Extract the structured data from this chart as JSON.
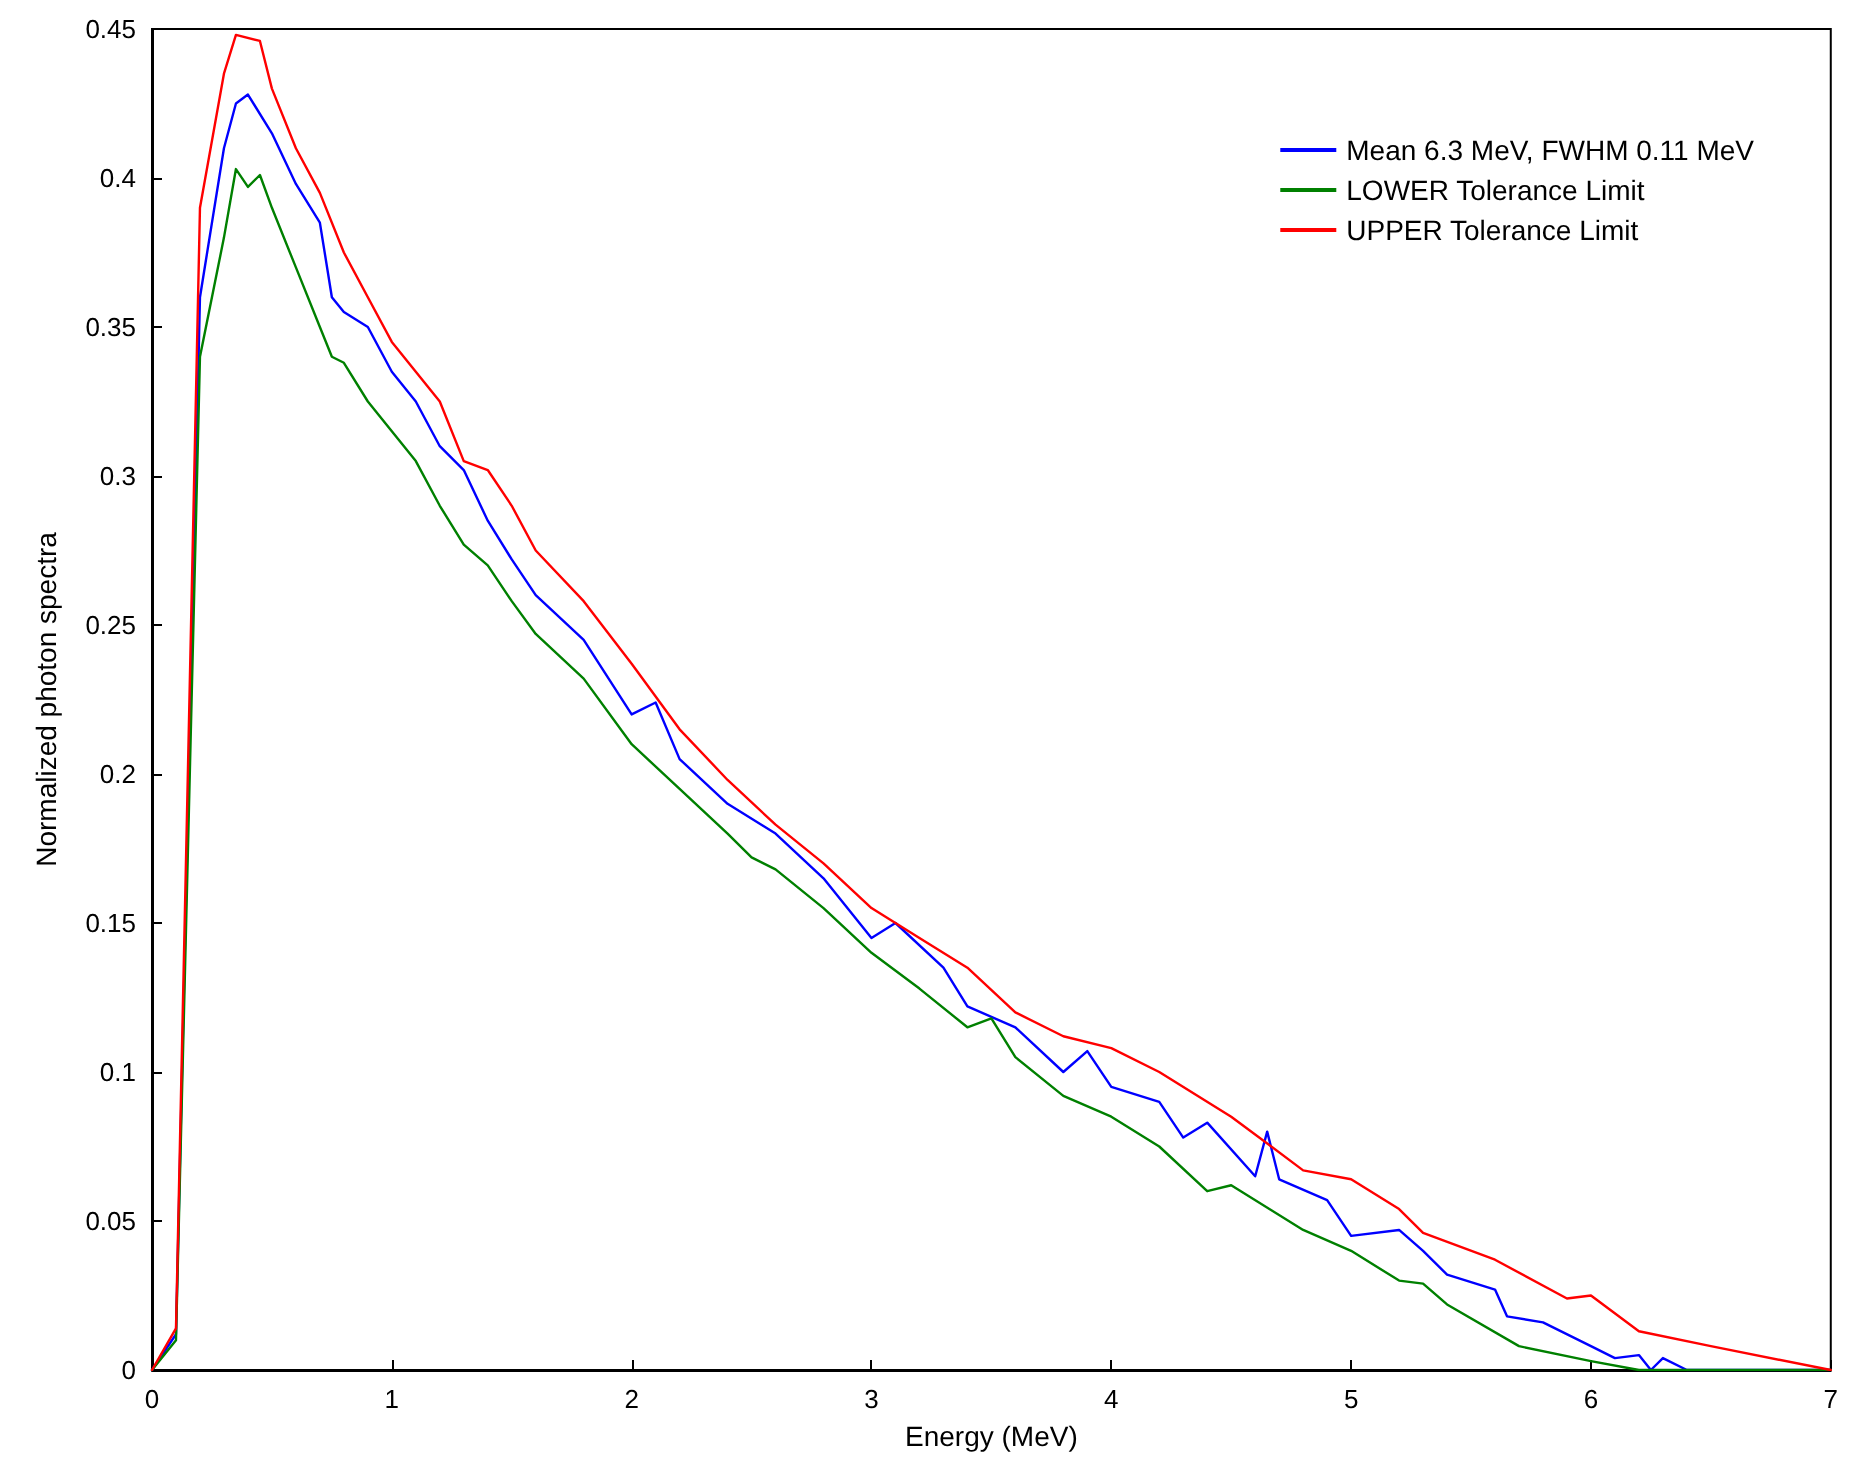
{
  "chart_data": {
    "type": "line",
    "xlabel": "Energy (MeV)",
    "ylabel": "Normalized photon spectra",
    "xlim": [
      0,
      7
    ],
    "ylim": [
      0,
      0.45
    ],
    "xticks": [
      0,
      1,
      2,
      3,
      4,
      5,
      6,
      7
    ],
    "yticks": [
      0,
      0.05,
      0.1,
      0.15,
      0.2,
      0.25,
      0.3,
      0.35,
      0.4,
      0.45
    ],
    "grid": false,
    "legend": "top right",
    "marker": "none",
    "line_style": "solid",
    "series": [
      {
        "name": "Mean 6.3 MeV, FWHM 0.11 MeV",
        "color": "#0000ff",
        "x": [
          0,
          0.1,
          0.2,
          0.3,
          0.35,
          0.4,
          0.5,
          0.6,
          0.7,
          0.75,
          0.8,
          0.9,
          1.0,
          1.1,
          1.2,
          1.3,
          1.4,
          1.5,
          1.6,
          1.8,
          2.0,
          2.1,
          2.2,
          2.4,
          2.6,
          2.8,
          3.0,
          3.1,
          3.3,
          3.4,
          3.6,
          3.8,
          3.9,
          4.0,
          4.2,
          4.3,
          4.4,
          4.6,
          4.65,
          4.7,
          4.9,
          5.0,
          5.2,
          5.3,
          5.4,
          5.6,
          5.65,
          5.8,
          6.0,
          6.1,
          6.2,
          6.25,
          6.3,
          6.4,
          7.0
        ],
        "values": [
          0,
          0.012,
          0.36,
          0.41,
          0.425,
          0.428,
          0.415,
          0.398,
          0.385,
          0.36,
          0.355,
          0.35,
          0.335,
          0.325,
          0.31,
          0.302,
          0.285,
          0.272,
          0.26,
          0.245,
          0.22,
          0.224,
          0.205,
          0.19,
          0.18,
          0.165,
          0.145,
          0.15,
          0.135,
          0.122,
          0.115,
          0.1,
          0.107,
          0.095,
          0.09,
          0.078,
          0.083,
          0.065,
          0.08,
          0.064,
          0.057,
          0.045,
          0.047,
          0.04,
          0.032,
          0.027,
          0.018,
          0.016,
          0.008,
          0.004,
          0.005,
          0,
          0.004,
          0,
          0
        ]
      },
      {
        "name": "LOWER Tolerance Limit",
        "color": "#008000",
        "x": [
          0,
          0.1,
          0.2,
          0.3,
          0.35,
          0.4,
          0.45,
          0.5,
          0.6,
          0.7,
          0.75,
          0.8,
          0.9,
          1.0,
          1.1,
          1.2,
          1.3,
          1.4,
          1.5,
          1.6,
          1.8,
          2.0,
          2.2,
          2.4,
          2.5,
          2.6,
          2.8,
          3.0,
          3.2,
          3.4,
          3.5,
          3.6,
          3.8,
          4.0,
          4.2,
          4.4,
          4.5,
          4.8,
          5.0,
          5.2,
          5.3,
          5.4,
          5.7,
          6.0,
          6.2,
          7.0
        ],
        "values": [
          0,
          0.01,
          0.34,
          0.38,
          0.403,
          0.397,
          0.401,
          0.39,
          0.37,
          0.35,
          0.34,
          0.338,
          0.325,
          0.315,
          0.305,
          0.29,
          0.277,
          0.27,
          0.258,
          0.247,
          0.232,
          0.21,
          0.195,
          0.18,
          0.172,
          0.168,
          0.155,
          0.14,
          0.128,
          0.115,
          0.118,
          0.105,
          0.092,
          0.085,
          0.075,
          0.06,
          0.062,
          0.047,
          0.04,
          0.03,
          0.029,
          0.022,
          0.008,
          0.003,
          0,
          0
        ]
      },
      {
        "name": "UPPER Tolerance Limit",
        "color": "#ff0000",
        "x": [
          0,
          0.1,
          0.2,
          0.3,
          0.35,
          0.45,
          0.5,
          0.6,
          0.7,
          0.8,
          0.9,
          1.0,
          1.1,
          1.2,
          1.3,
          1.4,
          1.5,
          1.6,
          1.8,
          2.0,
          2.2,
          2.4,
          2.6,
          2.8,
          3.0,
          3.2,
          3.4,
          3.6,
          3.8,
          4.0,
          4.2,
          4.5,
          4.8,
          5.0,
          5.2,
          5.3,
          5.6,
          5.9,
          6.0,
          6.2,
          6.5,
          7.0
        ],
        "values": [
          0,
          0.014,
          0.39,
          0.435,
          0.448,
          0.446,
          0.43,
          0.41,
          0.395,
          0.375,
          0.36,
          0.345,
          0.335,
          0.325,
          0.305,
          0.302,
          0.29,
          0.275,
          0.258,
          0.237,
          0.215,
          0.198,
          0.183,
          0.17,
          0.155,
          0.145,
          0.135,
          0.12,
          0.112,
          0.108,
          0.1,
          0.085,
          0.067,
          0.064,
          0.054,
          0.046,
          0.037,
          0.024,
          0.025,
          0.013,
          0.008,
          0
        ]
      }
    ]
  }
}
